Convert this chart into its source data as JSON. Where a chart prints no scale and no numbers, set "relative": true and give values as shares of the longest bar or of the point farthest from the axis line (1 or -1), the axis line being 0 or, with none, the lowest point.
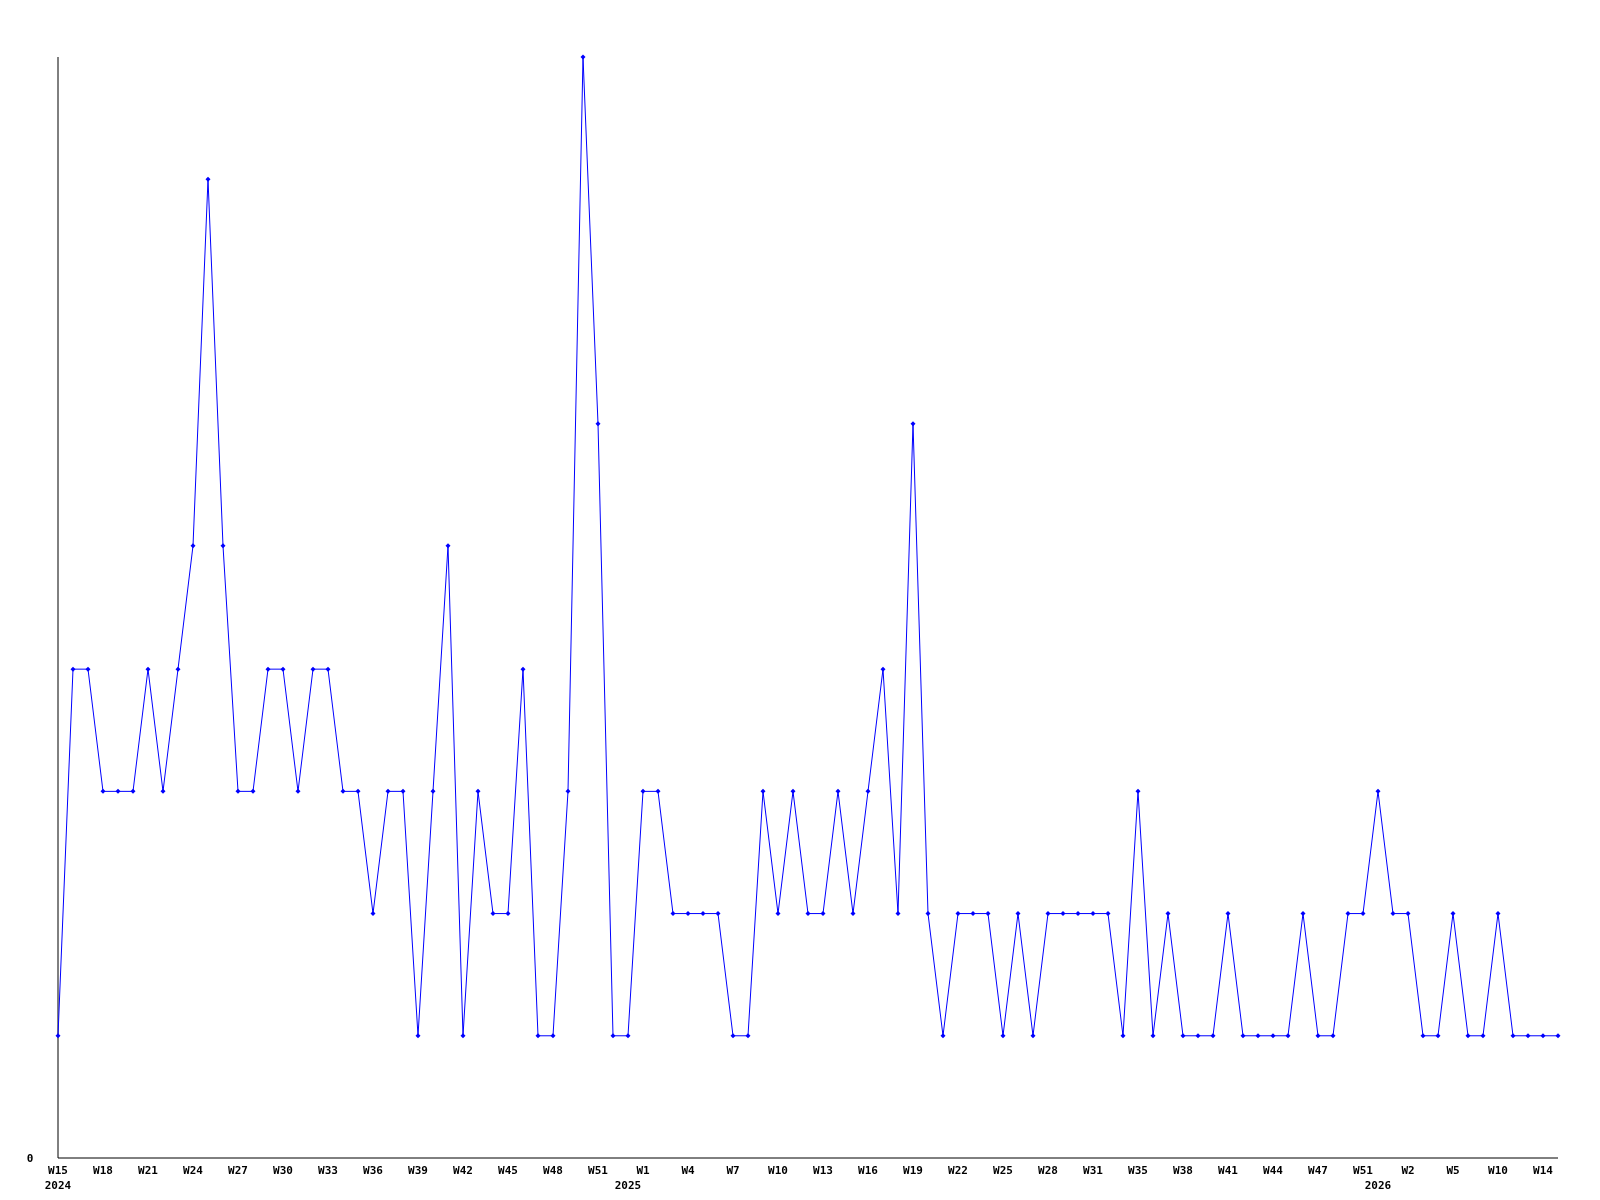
{
  "chart_data": {
    "type": "line",
    "relative": true,
    "marker": "diamond",
    "line_style": "solid",
    "annotations": [
      "0"
    ],
    "categories": [
      "W15\n2024",
      null,
      null,
      "W18",
      null,
      null,
      "W21",
      null,
      null,
      "W24",
      null,
      null,
      "W27",
      null,
      null,
      "W30",
      null,
      null,
      "W33",
      null,
      null,
      "W36",
      null,
      null,
      "W39",
      null,
      null,
      "W42",
      null,
      null,
      "W45",
      null,
      null,
      "W48",
      null,
      null,
      "W51",
      null,
      "\n2025",
      "W1",
      null,
      null,
      "W4",
      null,
      null,
      "W7",
      null,
      null,
      "W10",
      null,
      null,
      "W13",
      null,
      null,
      "W16",
      null,
      null,
      "W19",
      null,
      null,
      "W22",
      null,
      null,
      "W25",
      null,
      null,
      "W28",
      null,
      null,
      "W31",
      null,
      null,
      "W35",
      null,
      null,
      "W38",
      null,
      null,
      "W41",
      null,
      null,
      "W44",
      null,
      null,
      "W47",
      null,
      null,
      "W51",
      "\n2026",
      null,
      "W2",
      null,
      null,
      "W5",
      null,
      null,
      "W10",
      null,
      null,
      "W14",
      null
    ],
    "series": [
      {
        "color": "#0000ff",
        "values": [
          0.111,
          0.444,
          0.444,
          0.333,
          0.333,
          0.333,
          0.444,
          0.333,
          0.444,
          0.556,
          0.889,
          0.556,
          0.333,
          0.333,
          0.444,
          0.444,
          0.333,
          0.444,
          0.444,
          0.333,
          0.333,
          0.222,
          0.333,
          0.333,
          0.111,
          0.333,
          0.556,
          0.111,
          0.333,
          0.222,
          0.222,
          0.444,
          0.111,
          0.111,
          0.333,
          1,
          0.667,
          0.111,
          0.111,
          0.333,
          0.333,
          0.222,
          0.222,
          0.222,
          0.222,
          0.111,
          0.111,
          0.333,
          0.222,
          0.333,
          0.222,
          0.222,
          0.333,
          0.222,
          0.333,
          0.444,
          0.222,
          0.667,
          0.222,
          0.111,
          0.222,
          0.222,
          0.222,
          0.111,
          0.222,
          0.111,
          0.222,
          0.222,
          0.222,
          0.222,
          0.222,
          0.111,
          0.333,
          0.111,
          0.222,
          0.111,
          0.111,
          0.111,
          0.222,
          0.111,
          0.111,
          0.111,
          0.111,
          0.222,
          0.111,
          0.111,
          0.222,
          0.222,
          0.333,
          0.222,
          0.222,
          0.111,
          0.111,
          0.222,
          0.111,
          0.111,
          0.222,
          0.111,
          0.111,
          0.111,
          0.111
        ]
      }
    ]
  }
}
